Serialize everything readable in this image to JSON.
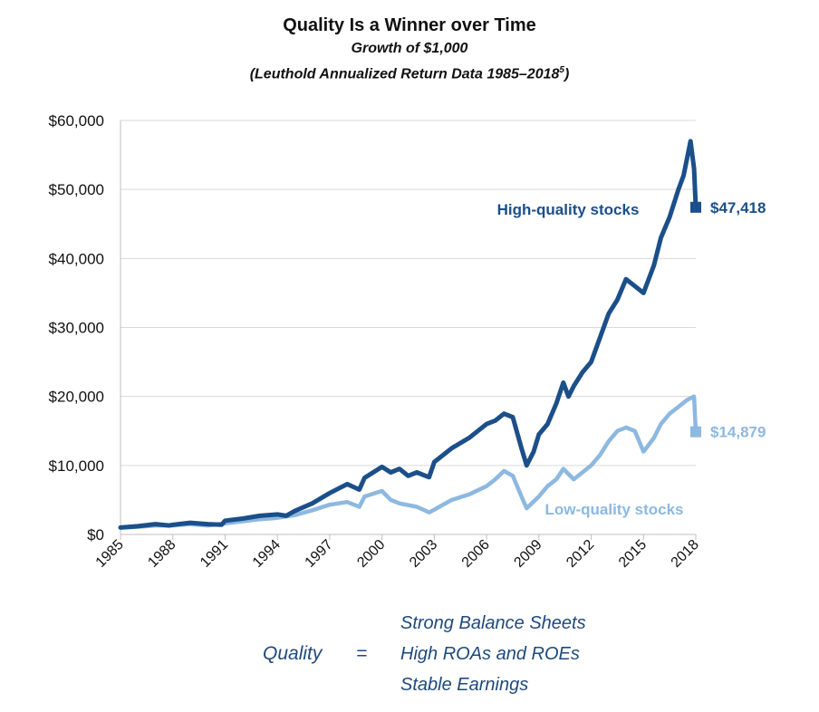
{
  "chart_data": {
    "type": "line",
    "title": "Quality Is a Winner over Time",
    "subtitle": "Growth of $1,000",
    "source_note": "(Leuthold Annualized Return Data 1985–2018",
    "source_superscript": "5",
    "source_close": ")",
    "ylim": [
      0,
      60000
    ],
    "xlim": [
      1985,
      2018
    ],
    "y_ticks": [
      0,
      10000,
      20000,
      30000,
      40000,
      50000,
      60000
    ],
    "y_tick_labels": [
      "$0",
      "$10,000",
      "$20,000",
      "$30,000",
      "$40,000",
      "$50,000",
      "$60,000"
    ],
    "x_ticks": [
      1985,
      1988,
      1991,
      1994,
      1997,
      2000,
      2003,
      2006,
      2009,
      2012,
      2015,
      2018
    ],
    "x_tick_labels": [
      "1985",
      "1988",
      "1991",
      "1994",
      "1997",
      "2000",
      "2003",
      "2006",
      "2009",
      "2012",
      "2015",
      "2018"
    ],
    "grid": "horizontal",
    "series": [
      {
        "name": "High-quality stocks",
        "color": "#1b4f8a",
        "end_label": "$47,418",
        "end_value": 47418,
        "x": [
          1985,
          1986,
          1987,
          1987.8,
          1988,
          1989,
          1990,
          1990.8,
          1991,
          1992,
          1993,
          1994,
          1994.5,
          1995,
          1996,
          1997,
          1998,
          1998.7,
          1999,
          2000,
          2000.5,
          2001,
          2001.5,
          2002,
          2002.7,
          2003,
          2004,
          2005,
          2006,
          2006.5,
          2007,
          2007.5,
          2008,
          2008.3,
          2008.7,
          2009,
          2009.5,
          2010,
          2010.4,
          2010.7,
          2011,
          2011.5,
          2012,
          2012.5,
          2013,
          2013.5,
          2014,
          2014.5,
          2015,
          2015.6,
          2016,
          2016.5,
          2017,
          2017.3,
          2017.7,
          2017.9,
          2018
        ],
        "y": [
          1000,
          1200,
          1500,
          1300,
          1400,
          1700,
          1500,
          1400,
          2000,
          2300,
          2700,
          2900,
          2700,
          3400,
          4500,
          6000,
          7300,
          6500,
          8200,
          9800,
          9000,
          9500,
          8500,
          9000,
          8300,
          10500,
          12500,
          14000,
          16000,
          16500,
          17500,
          17000,
          12500,
          10000,
          12000,
          14500,
          16000,
          19000,
          22000,
          20000,
          21500,
          23500,
          25000,
          28500,
          32000,
          34000,
          37000,
          36000,
          35000,
          39000,
          43000,
          46000,
          50000,
          52000,
          57000,
          53000,
          47418
        ]
      },
      {
        "name": "Low-quality stocks",
        "color": "#8db8e0",
        "end_label": "$14,879",
        "end_value": 14879,
        "x": [
          1985,
          1986,
          1987,
          1988,
          1989,
          1990,
          1991,
          1992,
          1993,
          1994,
          1995,
          1996,
          1997,
          1998,
          1998.7,
          1999,
          2000,
          2000.5,
          2001,
          2002,
          2002.7,
          2003,
          2004,
          2005,
          2006,
          2006.5,
          2007,
          2007.5,
          2008,
          2008.3,
          2009,
          2009.5,
          2010,
          2010.4,
          2011,
          2011.5,
          2012,
          2012.5,
          2013,
          2013.5,
          2014,
          2014.5,
          2015,
          2015.6,
          2016,
          2016.5,
          2017,
          2017.5,
          2017.9,
          2018
        ],
        "y": [
          1000,
          1100,
          1300,
          1300,
          1500,
          1300,
          1600,
          1900,
          2200,
          2400,
          2800,
          3500,
          4300,
          4700,
          4000,
          5500,
          6300,
          5000,
          4500,
          4000,
          3200,
          3600,
          5000,
          5800,
          7000,
          8000,
          9200,
          8500,
          5500,
          3800,
          5500,
          7000,
          8000,
          9500,
          8000,
          9000,
          10000,
          11500,
          13500,
          15000,
          15500,
          15000,
          12000,
          14000,
          16000,
          17500,
          18500,
          19500,
          20000,
          14879
        ]
      }
    ]
  },
  "formula": {
    "lhs": "Quality",
    "eq": "=",
    "items": [
      "Strong Balance Sheets",
      "High ROAs and ROEs",
      "Stable Earnings"
    ]
  }
}
